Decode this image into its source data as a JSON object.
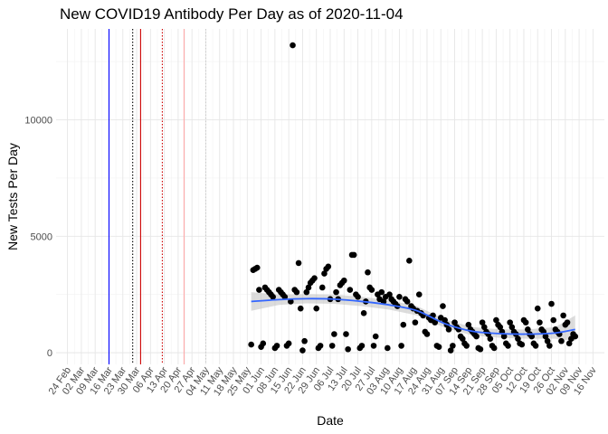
{
  "chart_data": {
    "type": "scatter",
    "title": "New COVID19 Antibody Per Day as of 2020-11-04",
    "xlabel": "Date",
    "ylabel": "New Tests Per Day",
    "x_start": "2020-02-24",
    "x_ticks": [
      "24 Feb",
      "02 Mar",
      "09 Mar",
      "16 Mar",
      "23 Mar",
      "30 Mar",
      "06 Apr",
      "13 Apr",
      "20 Apr",
      "27 Apr",
      "04 May",
      "11 May",
      "18 May",
      "25 May",
      "01 Jun",
      "08 Jun",
      "15 Jun",
      "22 Jun",
      "29 Jun",
      "06 Jul",
      "13 Jul",
      "20 Jul",
      "27 Jul",
      "03 Aug",
      "10 Aug",
      "17 Aug",
      "24 Aug",
      "31 Aug",
      "07 Sep",
      "14 Sep",
      "21 Sep",
      "28 Sep",
      "05 Oct",
      "12 Oct",
      "19 Oct",
      "26 Oct",
      "02 Nov",
      "09 Nov",
      "16 Nov"
    ],
    "y_ticks": [
      0,
      5000,
      10000
    ],
    "ylim": [
      -500,
      13900
    ],
    "grid": true,
    "vlines": [
      {
        "date": "2020-03-16",
        "color": "#0000ff",
        "style": "solid"
      },
      {
        "date": "2020-03-28",
        "color": "#000000",
        "style": "dotted"
      },
      {
        "date": "2020-04-01",
        "color": "#cc0000",
        "style": "solid"
      },
      {
        "date": "2020-04-12",
        "color": "#cc0000",
        "style": "dotted"
      },
      {
        "date": "2020-04-23",
        "color": "#ffaaaa",
        "style": "solid"
      },
      {
        "date": "2020-05-04",
        "color": "#cccccc",
        "style": "dotted"
      }
    ],
    "points": [
      [
        "2020-05-27",
        350
      ],
      [
        "2020-05-28",
        3550
      ],
      [
        "2020-05-29",
        3600
      ],
      [
        "2020-05-30",
        3650
      ],
      [
        "2020-05-31",
        2700
      ],
      [
        "2020-06-01",
        250
      ],
      [
        "2020-06-02",
        400
      ],
      [
        "2020-06-03",
        2800
      ],
      [
        "2020-06-04",
        2700
      ],
      [
        "2020-06-05",
        2600
      ],
      [
        "2020-06-06",
        2500
      ],
      [
        "2020-06-07",
        2400
      ],
      [
        "2020-06-08",
        200
      ],
      [
        "2020-06-09",
        300
      ],
      [
        "2020-06-10",
        2700
      ],
      [
        "2020-06-11",
        2600
      ],
      [
        "2020-06-12",
        2500
      ],
      [
        "2020-06-13",
        2400
      ],
      [
        "2020-06-14",
        300
      ],
      [
        "2020-06-15",
        400
      ],
      [
        "2020-06-16",
        2200
      ],
      [
        "2020-06-17",
        13200
      ],
      [
        "2020-06-18",
        2700
      ],
      [
        "2020-06-19",
        2600
      ],
      [
        "2020-06-20",
        3850
      ],
      [
        "2020-06-21",
        1900
      ],
      [
        "2020-06-22",
        100
      ],
      [
        "2020-06-23",
        500
      ],
      [
        "2020-06-24",
        2600
      ],
      [
        "2020-06-25",
        2800
      ],
      [
        "2020-06-26",
        3000
      ],
      [
        "2020-06-27",
        3100
      ],
      [
        "2020-06-28",
        3200
      ],
      [
        "2020-06-29",
        1900
      ],
      [
        "2020-06-30",
        200
      ],
      [
        "2020-07-01",
        300
      ],
      [
        "2020-07-02",
        2800
      ],
      [
        "2020-07-03",
        3400
      ],
      [
        "2020-07-04",
        3600
      ],
      [
        "2020-07-05",
        3700
      ],
      [
        "2020-07-06",
        2300
      ],
      [
        "2020-07-07",
        300
      ],
      [
        "2020-07-08",
        800
      ],
      [
        "2020-07-09",
        2600
      ],
      [
        "2020-07-10",
        2300
      ],
      [
        "2020-07-11",
        2900
      ],
      [
        "2020-07-12",
        3000
      ],
      [
        "2020-07-13",
        3100
      ],
      [
        "2020-07-14",
        800
      ],
      [
        "2020-07-15",
        150
      ],
      [
        "2020-07-16",
        2700
      ],
      [
        "2020-07-17",
        4200
      ],
      [
        "2020-07-18",
        4200
      ],
      [
        "2020-07-19",
        2500
      ],
      [
        "2020-07-20",
        2400
      ],
      [
        "2020-07-21",
        200
      ],
      [
        "2020-07-22",
        300
      ],
      [
        "2020-07-23",
        1700
      ],
      [
        "2020-07-24",
        2200
      ],
      [
        "2020-07-25",
        3450
      ],
      [
        "2020-07-26",
        2800
      ],
      [
        "2020-07-27",
        2700
      ],
      [
        "2020-07-28",
        300
      ],
      [
        "2020-07-29",
        700
      ],
      [
        "2020-07-30",
        2500
      ],
      [
        "2020-07-31",
        2300
      ],
      [
        "2020-08-01",
        2600
      ],
      [
        "2020-08-02",
        2200
      ],
      [
        "2020-08-03",
        2400
      ],
      [
        "2020-08-04",
        200
      ],
      [
        "2020-08-05",
        2500
      ],
      [
        "2020-08-06",
        2300
      ],
      [
        "2020-08-07",
        2200
      ],
      [
        "2020-08-08",
        2100
      ],
      [
        "2020-08-09",
        2000
      ],
      [
        "2020-08-10",
        2400
      ],
      [
        "2020-08-11",
        300
      ],
      [
        "2020-08-12",
        1200
      ],
      [
        "2020-08-13",
        2300
      ],
      [
        "2020-08-14",
        2200
      ],
      [
        "2020-08-15",
        3950
      ],
      [
        "2020-08-16",
        2000
      ],
      [
        "2020-08-17",
        1900
      ],
      [
        "2020-08-18",
        1300
      ],
      [
        "2020-08-19",
        1800
      ],
      [
        "2020-08-20",
        2500
      ],
      [
        "2020-08-21",
        1700
      ],
      [
        "2020-08-22",
        1600
      ],
      [
        "2020-08-23",
        900
      ],
      [
        "2020-08-24",
        800
      ],
      [
        "2020-08-25",
        1500
      ],
      [
        "2020-08-26",
        1400
      ],
      [
        "2020-08-27",
        1600
      ],
      [
        "2020-08-28",
        1300
      ],
      [
        "2020-08-29",
        300
      ],
      [
        "2020-08-30",
        250
      ],
      [
        "2020-08-31",
        1500
      ],
      [
        "2020-09-01",
        2000
      ],
      [
        "2020-09-02",
        1400
      ],
      [
        "2020-09-03",
        1200
      ],
      [
        "2020-09-04",
        1000
      ],
      [
        "2020-09-05",
        100
      ],
      [
        "2020-09-06",
        300
      ],
      [
        "2020-09-07",
        1300
      ],
      [
        "2020-09-08",
        1100
      ],
      [
        "2020-09-09",
        1000
      ],
      [
        "2020-09-10",
        700
      ],
      [
        "2020-09-11",
        600
      ],
      [
        "2020-09-12",
        400
      ],
      [
        "2020-09-13",
        300
      ],
      [
        "2020-09-14",
        1200
      ],
      [
        "2020-09-15",
        1000
      ],
      [
        "2020-09-16",
        900
      ],
      [
        "2020-09-17",
        800
      ],
      [
        "2020-09-18",
        700
      ],
      [
        "2020-09-19",
        200
      ],
      [
        "2020-09-20",
        150
      ],
      [
        "2020-09-21",
        1300
      ],
      [
        "2020-09-22",
        1100
      ],
      [
        "2020-09-23",
        900
      ],
      [
        "2020-09-24",
        800
      ],
      [
        "2020-09-25",
        600
      ],
      [
        "2020-09-26",
        300
      ],
      [
        "2020-09-27",
        200
      ],
      [
        "2020-09-28",
        1400
      ],
      [
        "2020-09-29",
        1200
      ],
      [
        "2020-09-30",
        1100
      ],
      [
        "2020-10-01",
        900
      ],
      [
        "2020-10-02",
        700
      ],
      [
        "2020-10-03",
        400
      ],
      [
        "2020-10-04",
        300
      ],
      [
        "2020-10-05",
        1300
      ],
      [
        "2020-10-06",
        1100
      ],
      [
        "2020-10-07",
        900
      ],
      [
        "2020-10-08",
        800
      ],
      [
        "2020-10-09",
        600
      ],
      [
        "2020-10-10",
        400
      ],
      [
        "2020-10-11",
        350
      ],
      [
        "2020-10-12",
        1400
      ],
      [
        "2020-10-13",
        1300
      ],
      [
        "2020-10-14",
        1000
      ],
      [
        "2020-10-15",
        800
      ],
      [
        "2020-10-16",
        700
      ],
      [
        "2020-10-17",
        400
      ],
      [
        "2020-10-18",
        300
      ],
      [
        "2020-10-19",
        1900
      ],
      [
        "2020-10-20",
        1300
      ],
      [
        "2020-10-21",
        1000
      ],
      [
        "2020-10-22",
        900
      ],
      [
        "2020-10-23",
        700
      ],
      [
        "2020-10-24",
        500
      ],
      [
        "2020-10-25",
        300
      ],
      [
        "2020-10-26",
        2100
      ],
      [
        "2020-10-27",
        1400
      ],
      [
        "2020-10-28",
        1000
      ],
      [
        "2020-10-29",
        900
      ],
      [
        "2020-10-30",
        800
      ],
      [
        "2020-10-31",
        500
      ],
      [
        "2020-11-01",
        1600
      ],
      [
        "2020-11-02",
        1200
      ],
      [
        "2020-11-03",
        1300
      ],
      [
        "2020-11-04",
        400
      ],
      [
        "2020-11-05",
        600
      ],
      [
        "2020-11-06",
        800
      ],
      [
        "2020-11-07",
        700
      ]
    ],
    "smooth": [
      [
        "2020-05-27",
        2200
      ],
      [
        "2020-06-10",
        2280
      ],
      [
        "2020-06-24",
        2320
      ],
      [
        "2020-07-08",
        2300
      ],
      [
        "2020-07-22",
        2200
      ],
      [
        "2020-08-05",
        2050
      ],
      [
        "2020-08-19",
        1800
      ],
      [
        "2020-09-02",
        1250
      ],
      [
        "2020-09-16",
        920
      ],
      [
        "2020-09-30",
        820
      ],
      [
        "2020-10-14",
        800
      ],
      [
        "2020-10-28",
        850
      ],
      [
        "2020-11-07",
        1000
      ]
    ],
    "band": [
      [
        "2020-05-27",
        1800,
        2600
      ],
      [
        "2020-06-10",
        2050,
        2500
      ],
      [
        "2020-06-24",
        2120,
        2520
      ],
      [
        "2020-07-08",
        2100,
        2500
      ],
      [
        "2020-07-22",
        2000,
        2400
      ],
      [
        "2020-08-05",
        1850,
        2250
      ],
      [
        "2020-08-19",
        1600,
        2000
      ],
      [
        "2020-09-02",
        1070,
        1430
      ],
      [
        "2020-09-16",
        740,
        1100
      ],
      [
        "2020-09-30",
        640,
        1000
      ],
      [
        "2020-10-14",
        600,
        1000
      ],
      [
        "2020-10-28",
        600,
        1100
      ],
      [
        "2020-11-07",
        500,
        1600
      ]
    ],
    "point_color": "#000000",
    "smooth_color": "#3366ff",
    "band_color": "#bfbfbf"
  }
}
